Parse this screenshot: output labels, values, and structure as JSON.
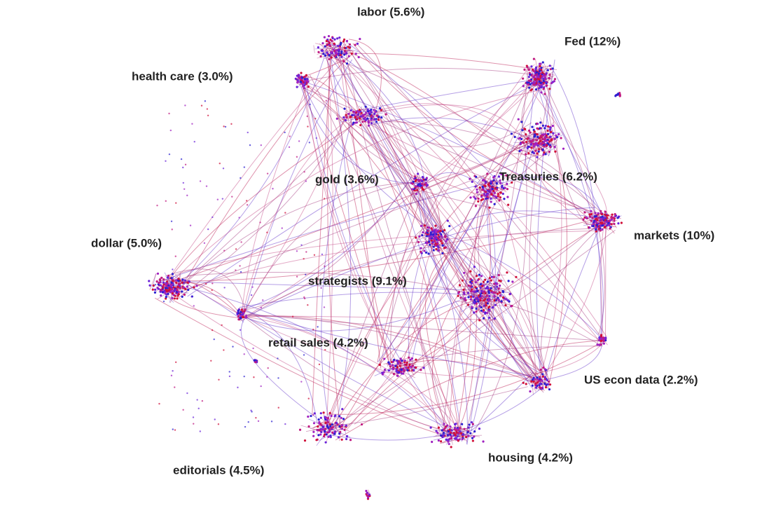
{
  "nodes": [
    {
      "label": "labor (5.6%)"
    },
    {
      "label": "Fed (12%)"
    },
    {
      "label": "health care (3.0%)"
    },
    {
      "label": "gold (3.6%)"
    },
    {
      "label": "Treasuries (6.2%)"
    },
    {
      "label": "markets (10%)"
    },
    {
      "label": "dollar (5.0%)"
    },
    {
      "label": "strategists (9.1%)"
    },
    {
      "label": "retail sales (4.2%)"
    },
    {
      "label": "US econ data (2.2%)"
    },
    {
      "label": "housing (4.2%)"
    },
    {
      "label": "editorials (4.5%)"
    }
  ]
}
